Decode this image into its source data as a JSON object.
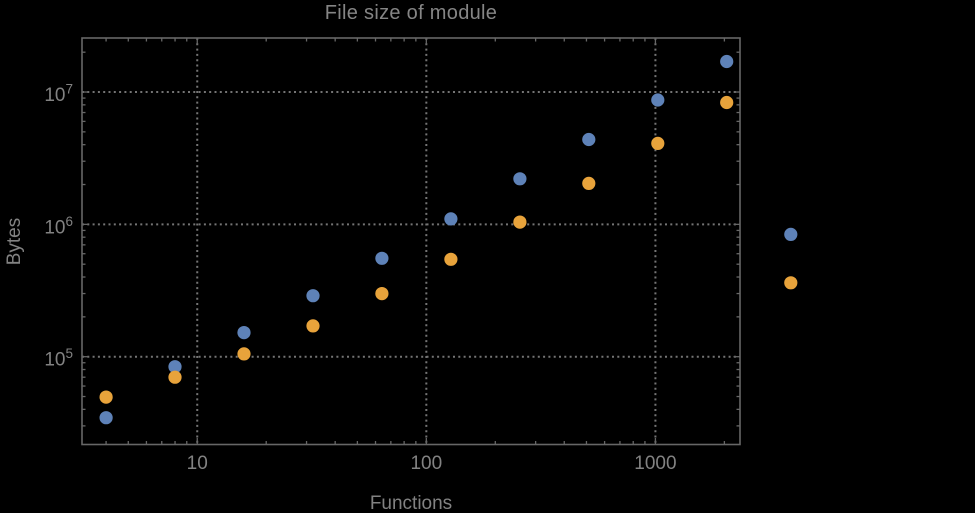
{
  "window": {
    "background": "#000000"
  },
  "colors": {
    "background": "#000000",
    "frame": "#676767",
    "grid": "#747474",
    "tick": "#676767",
    "tick_label": "#828282",
    "axis_label": "#828282",
    "title": "#858585",
    "series_blue": "#5e82b8",
    "series_orange": "#e8a33b"
  },
  "chart_data": {
    "type": "scatter",
    "title": "File size of module",
    "xlabel": "Functions",
    "ylabel": "Bytes",
    "x_scale": "log",
    "y_scale": "log",
    "xlim": [
      3.14,
      2340
    ],
    "ylim": [
      21700,
      25600000
    ],
    "grid": {
      "style": "dotted",
      "lines": "major decades only"
    },
    "legend": "none",
    "frame": true,
    "x_tick_labels": [
      {
        "text": "10",
        "value": 10
      },
      {
        "text": "100",
        "value": 100
      },
      {
        "text": "1000",
        "value": 1000
      }
    ],
    "y_tick_labels": [
      {
        "base": "10",
        "exp": "5",
        "value": 100000
      },
      {
        "base": "10",
        "exp": "6",
        "value": 1000000
      },
      {
        "base": "10",
        "exp": "7",
        "value": 10000000
      }
    ],
    "x": [
      4,
      8,
      16,
      32,
      64,
      128,
      256,
      512,
      1024,
      2048,
      3900
    ],
    "series": [
      {
        "name": "series-1-blue",
        "color": "#5e82b8",
        "values": [
          34600,
          84000,
          152000,
          289000,
          554000,
          1100000,
          2210000,
          4380000,
          8700000,
          17000000,
          840000
        ]
      },
      {
        "name": "series-2-orange",
        "color": "#e8a33b",
        "values": [
          49500,
          70000,
          105000,
          171000,
          300000,
          544000,
          1040000,
          2040000,
          4090000,
          8330000,
          362000
        ]
      }
    ]
  }
}
